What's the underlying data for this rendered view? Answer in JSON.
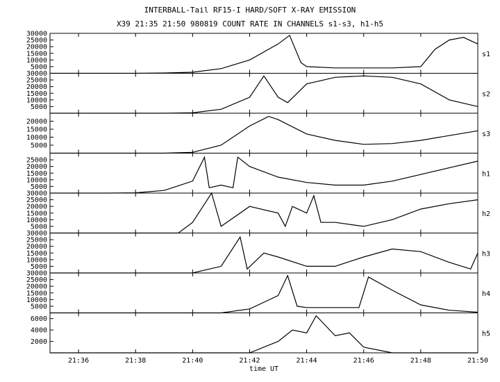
{
  "header": {
    "title": "INTERBALL-Tail RF15-I HARD/SOFT X-RAY EMISSION",
    "subtitle": "X39  21:35 21:50 980819  COUNT RATE IN CHANNELS s1-s3, h1-h5"
  },
  "chart_data": {
    "type": "line",
    "xlabel": "time UT",
    "xlim": [
      "21:35",
      "21:50"
    ],
    "xticks": [
      "21:36",
      "21:38",
      "21:40",
      "21:42",
      "21:44",
      "21:46",
      "21:48",
      "21:50"
    ],
    "panels": [
      {
        "name": "s1",
        "ylim": [
          0,
          30000
        ],
        "yticks": [
          5000,
          10000,
          15000,
          20000,
          25000,
          30000
        ],
        "x": [
          "21:35",
          "21:37",
          "21:38",
          "21:39",
          "21:40",
          "21:41",
          "21:42",
          "21:43",
          "21:43:24",
          "21:43:48",
          "21:44",
          "21:45",
          "21:46",
          "21:47",
          "21:48",
          "21:48:30",
          "21:49",
          "21:49:30",
          "21:50"
        ],
        "values": [
          0,
          0,
          0,
          200,
          800,
          3500,
          10000,
          22000,
          28500,
          8000,
          5000,
          4000,
          4000,
          4000,
          5000,
          18000,
          25000,
          27000,
          22000
        ]
      },
      {
        "name": "s2",
        "ylim": [
          0,
          30000
        ],
        "yticks": [
          5000,
          10000,
          15000,
          20000,
          25000,
          30000
        ],
        "x": [
          "21:35",
          "21:39",
          "21:40",
          "21:41",
          "21:42",
          "21:42:30",
          "21:43",
          "21:43:20",
          "21:44",
          "21:45",
          "21:46",
          "21:47",
          "21:48",
          "21:49",
          "21:50"
        ],
        "values": [
          0,
          0,
          300,
          3000,
          12000,
          28000,
          12000,
          8000,
          22000,
          27000,
          28000,
          27000,
          22000,
          10000,
          5000
        ]
      },
      {
        "name": "s3",
        "ylim": [
          0,
          25000
        ],
        "yticks": [
          5000,
          10000,
          15000,
          20000
        ],
        "x": [
          "21:35",
          "21:39",
          "21:40",
          "21:41",
          "21:42",
          "21:42:40",
          "21:43",
          "21:44",
          "21:45",
          "21:46",
          "21:47",
          "21:48",
          "21:49",
          "21:50"
        ],
        "values": [
          0,
          0,
          500,
          5000,
          17000,
          23000,
          21000,
          12000,
          8000,
          5500,
          6000,
          8000,
          11000,
          14000
        ]
      },
      {
        "name": "h1",
        "ylim": [
          0,
          30000
        ],
        "yticks": [
          5000,
          10000,
          15000,
          20000,
          25000
        ],
        "x": [
          "21:35",
          "21:37",
          "21:38",
          "21:39",
          "21:40",
          "21:40:25",
          "21:40:35",
          "21:41",
          "21:41:25",
          "21:41:35",
          "21:42",
          "21:43",
          "21:44",
          "21:45",
          "21:46",
          "21:47",
          "21:48",
          "21:49",
          "21:50"
        ],
        "values": [
          0,
          0,
          200,
          2000,
          9000,
          27000,
          4000,
          6000,
          4000,
          27000,
          20000,
          12000,
          8000,
          6000,
          6000,
          9000,
          14000,
          19000,
          24000
        ]
      },
      {
        "name": "h2",
        "ylim": [
          0,
          30000
        ],
        "yticks": [
          5000,
          10000,
          15000,
          20000,
          25000,
          30000
        ],
        "x": [
          "21:35",
          "21:39:30",
          "21:40",
          "21:40:40",
          "21:41",
          "21:42",
          "21:43",
          "21:43:15",
          "21:43:30",
          "21:44",
          "21:44:15",
          "21:44:30",
          "21:45",
          "21:46",
          "21:47",
          "21:48",
          "21:49",
          "21:50"
        ],
        "values": [
          0,
          0,
          8000,
          30000,
          5000,
          20000,
          15000,
          5000,
          20000,
          15000,
          28000,
          8000,
          8000,
          5000,
          10000,
          18000,
          22000,
          25000
        ]
      },
      {
        "name": "h3",
        "ylim": [
          0,
          30000
        ],
        "yticks": [
          5000,
          10000,
          15000,
          20000,
          25000,
          30000
        ],
        "x": [
          "21:35",
          "21:40",
          "21:41",
          "21:41:40",
          "21:41:55",
          "21:42:30",
          "21:43",
          "21:44",
          "21:45",
          "21:46",
          "21:47",
          "21:48",
          "21:49",
          "21:49:45",
          "21:50"
        ],
        "values": [
          0,
          0,
          5000,
          27000,
          3000,
          15000,
          12000,
          5000,
          5000,
          12000,
          18000,
          16000,
          8000,
          3000,
          15000
        ]
      },
      {
        "name": "h4",
        "ylim": [
          0,
          30000
        ],
        "yticks": [
          5000,
          10000,
          15000,
          20000,
          25000,
          30000
        ],
        "x": [
          "21:35",
          "21:41",
          "21:42",
          "21:43",
          "21:43:20",
          "21:43:40",
          "21:44",
          "21:45",
          "21:45:50",
          "21:46:10",
          "21:47",
          "21:48",
          "21:49",
          "21:50"
        ],
        "values": [
          0,
          0,
          3000,
          13000,
          28000,
          5000,
          4000,
          4000,
          4000,
          27000,
          17000,
          6000,
          2000,
          500
        ]
      },
      {
        "name": "h5",
        "ylim": [
          0,
          7000
        ],
        "yticks": [
          2000,
          4000,
          6000
        ],
        "x": [
          "21:35",
          "21:42",
          "21:43",
          "21:43:30",
          "21:44",
          "21:44:20",
          "21:45",
          "21:45:30",
          "21:46",
          "21:47",
          "21:50"
        ],
        "values": [
          0,
          0,
          2000,
          4000,
          3500,
          6500,
          3000,
          3500,
          1000,
          0,
          0
        ]
      }
    ]
  }
}
